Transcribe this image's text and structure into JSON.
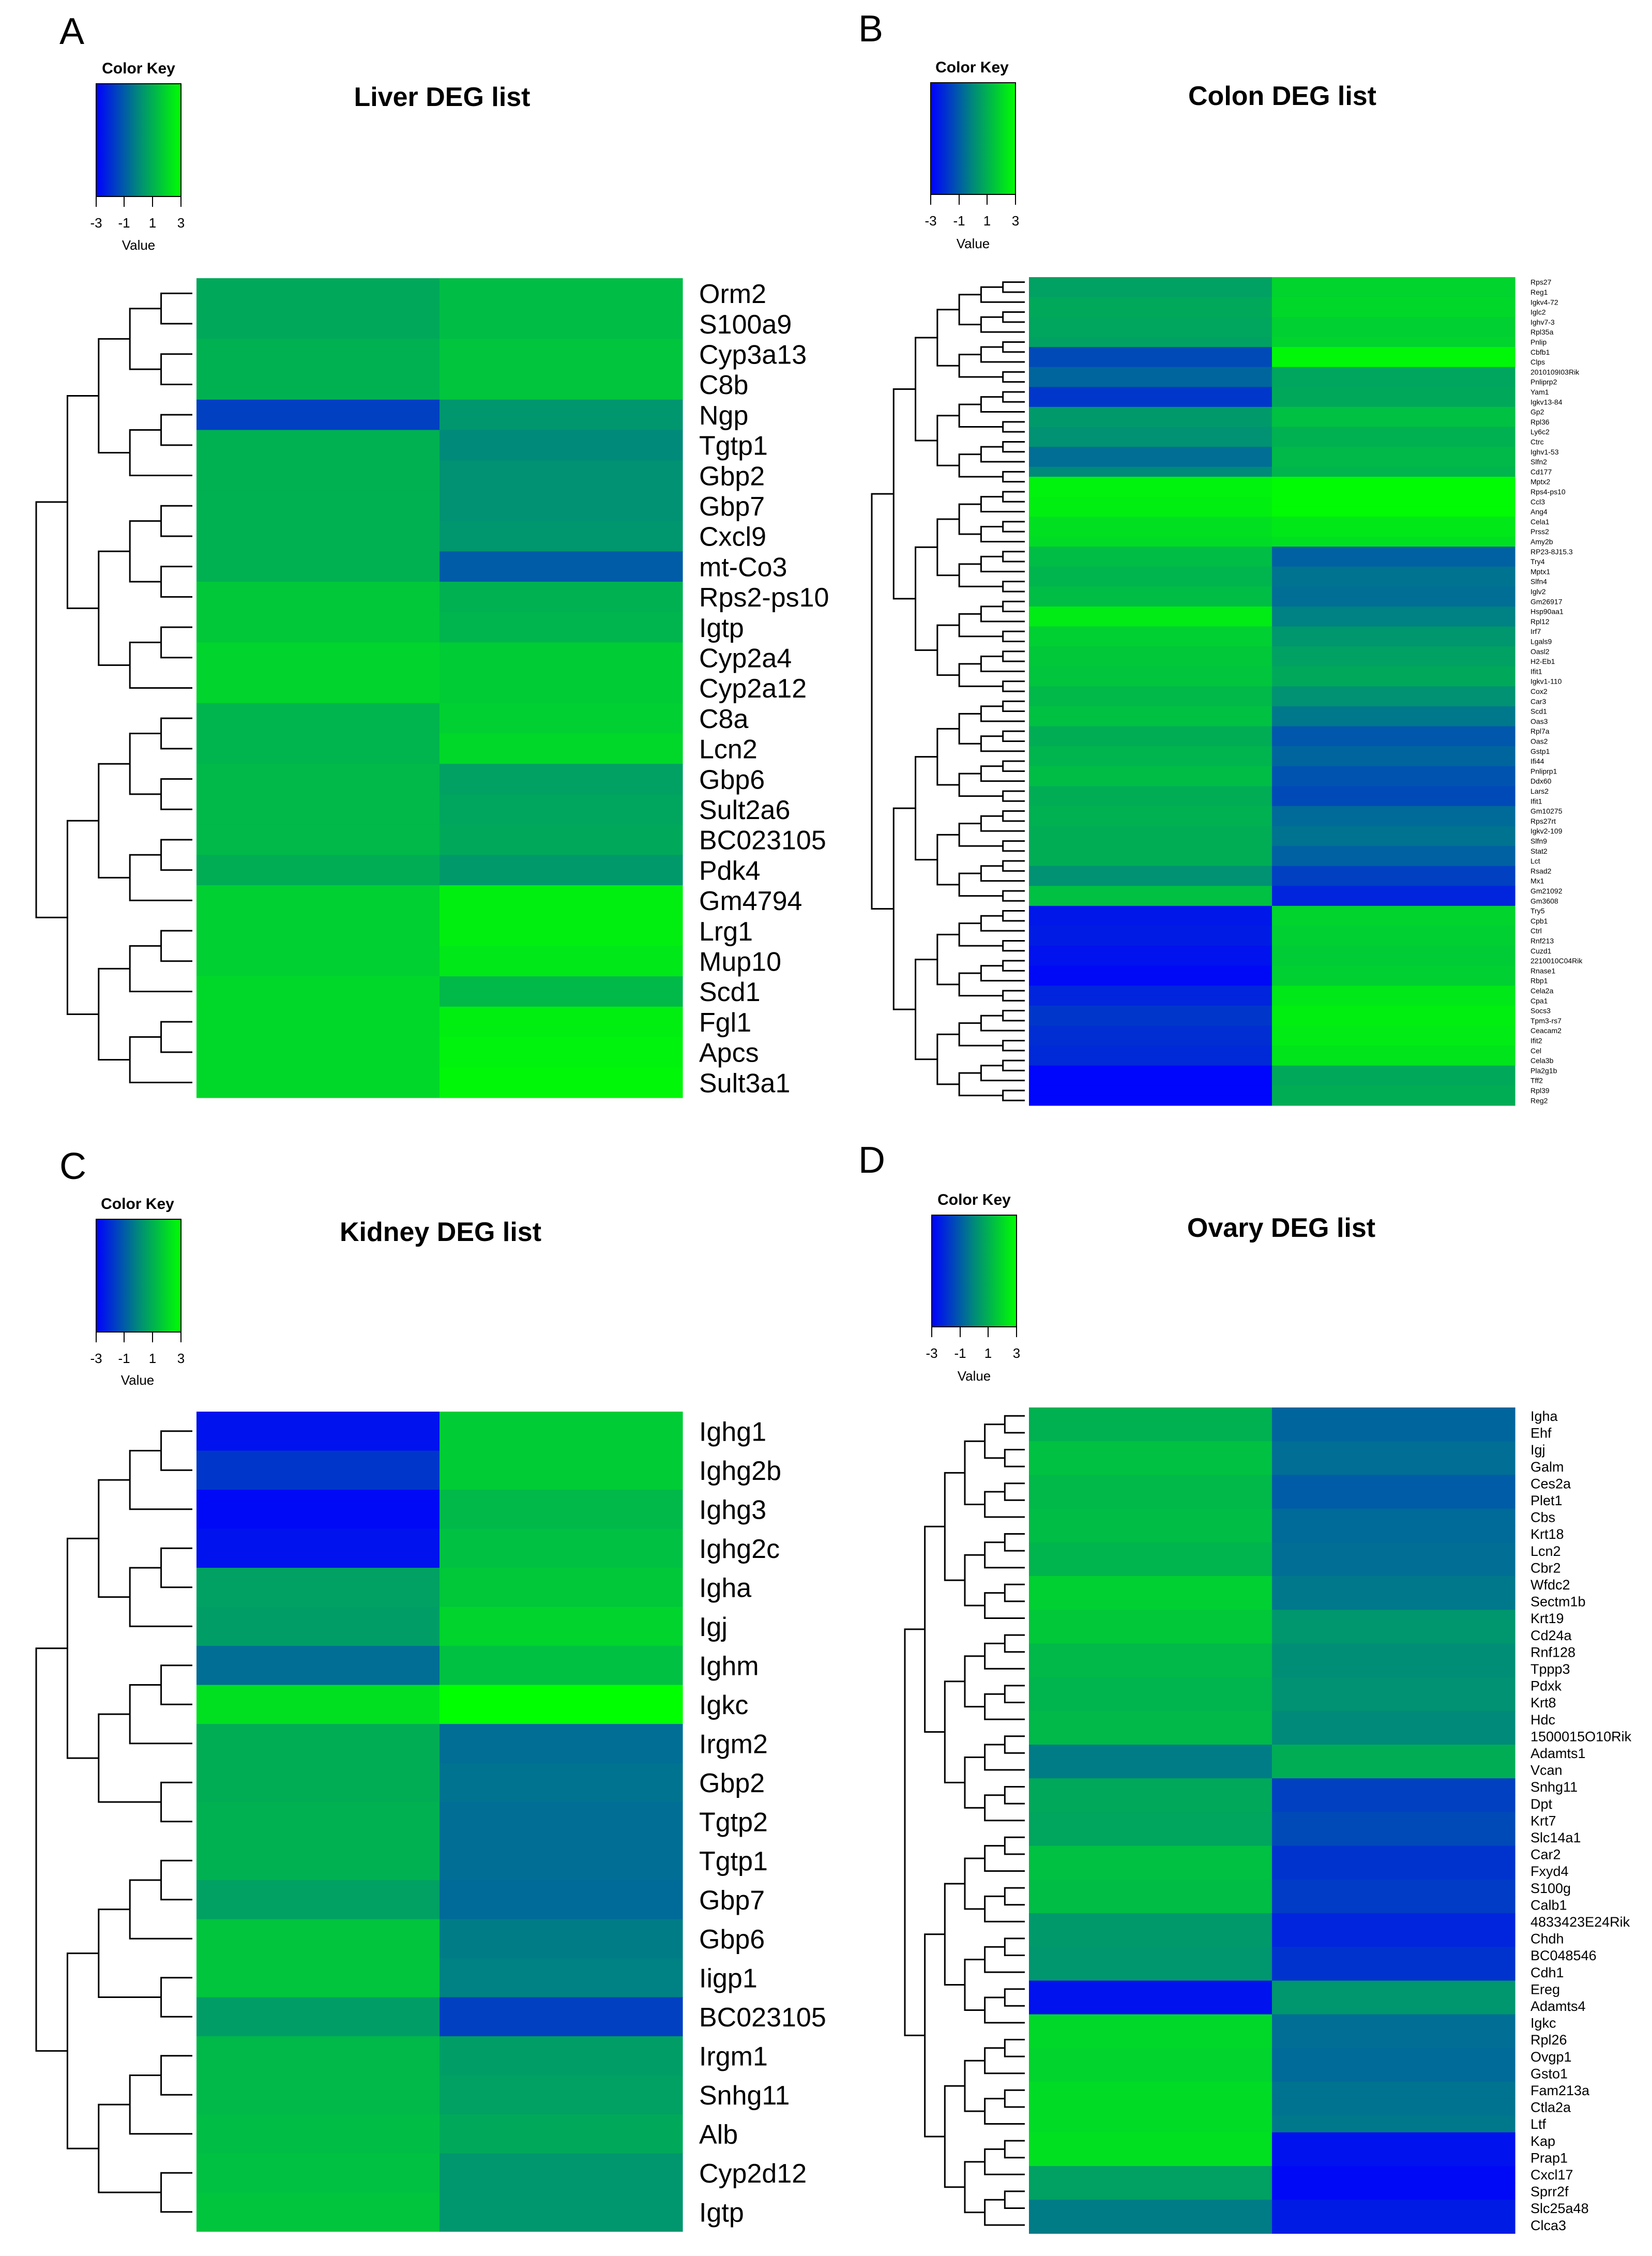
{
  "color_key": {
    "title": "Color Key",
    "ticks": [
      "-3",
      "-1",
      "1",
      "3"
    ],
    "xlabel": "Value",
    "colors": {
      "low": "#0000ff",
      "mid": "#008a7a",
      "high": "#00ff00"
    },
    "range": [
      -3,
      3
    ]
  },
  "chart_data": [
    {
      "type": "heatmap",
      "panel": "A",
      "title": "Liver DEG list",
      "rows": [
        "Orm2",
        "S100a9",
        "Cyp3a13",
        "C8b",
        "Ngp",
        "Tgtp1",
        "Gbp2",
        "Gbp7",
        "Cxcl9",
        "mt-Co3",
        "Rps2-ps10",
        "Igtp",
        "Cyp2a4",
        "Cyp2a12",
        "C8a",
        "Lcn2",
        "Gbp6",
        "Sult2a6",
        "BC023105",
        "Pdk4",
        "Gm4794",
        "Lrg1",
        "Mup10",
        "Scd1",
        "Fgl1",
        "Apcs",
        "Sult3a1"
      ],
      "values": [
        [
          0.8,
          1.3
        ],
        [
          0.8,
          1.3
        ],
        [
          1.0,
          1.5
        ],
        [
          1.0,
          1.5
        ],
        [
          -1.6,
          0.3
        ],
        [
          1.0,
          0.0
        ],
        [
          1.0,
          0.2
        ],
        [
          1.0,
          0.2
        ],
        [
          1.0,
          0.3
        ],
        [
          1.0,
          -1.0
        ],
        [
          1.6,
          1.0
        ],
        [
          1.6,
          1.1
        ],
        [
          1.9,
          1.7
        ],
        [
          1.9,
          1.7
        ],
        [
          1.1,
          1.8
        ],
        [
          1.1,
          2.0
        ],
        [
          1.2,
          0.6
        ],
        [
          1.2,
          0.7
        ],
        [
          1.2,
          0.8
        ],
        [
          0.9,
          0.4
        ],
        [
          1.8,
          2.6
        ],
        [
          1.8,
          2.6
        ],
        [
          1.8,
          2.4
        ],
        [
          2.0,
          1.2
        ],
        [
          2.0,
          2.6
        ],
        [
          2.0,
          2.7
        ],
        [
          2.0,
          2.8
        ]
      ]
    },
    {
      "type": "heatmap",
      "panel": "B",
      "title": "Colon DEG list",
      "rows": [
        "Rps27",
        "Reg1",
        "Igkv4-72",
        "Iglc2",
        "Ighv7-3",
        "Rpl35a",
        "Pnlip",
        "Cbfb1",
        "Clps",
        "2010109I03Rik",
        "Pnliprp2",
        "Yam1",
        "Igkv13-84",
        "Gp2",
        "Rpl36",
        "Ly6c2",
        "Ctrc",
        "Ighv1-53",
        "Slfn2",
        "Cd177",
        "Mptx2",
        "Rps4-ps10",
        "Ccl3",
        "Ang4",
        "Cela1",
        "Prss2",
        "Amy2b",
        "RP23-8J15.3",
        "Try4",
        "Mptx1",
        "Slfn4",
        "Iglv2",
        "Gm26917",
        "Hsp90aa1",
        "Rpl12",
        "Irf7",
        "Lgals9",
        "Oasl2",
        "H2-Eb1",
        "Ifit1",
        "Igkv1-110",
        "Cox2",
        "Car3",
        "Scd1",
        "Oas3",
        "Rpl7a",
        "Oas2",
        "Gstp1",
        "Ifi44",
        "Pnliprp1",
        "Ddx60",
        "Lars2",
        "Ifit1",
        "Gm10275",
        "Rps27rt",
        "Igkv2-109",
        "Slfn9",
        "Stat2",
        "Lct",
        "Rsad2",
        "Mx1",
        "Gm21092",
        "Gm3608",
        "Try5",
        "Cpb1",
        "Ctrl",
        "Rnf213",
        "Cuzd1",
        "2210010C04Rik",
        "Rnase1",
        "Rbp1",
        "Cela2a",
        "Cpa1",
        "Socs3",
        "Tpm3-rs7",
        "Ceacam2",
        "Ifit2",
        "Cel",
        "Cela3b",
        "Pla2g1b",
        "Tff2",
        "Rpl39",
        "Reg2"
      ],
      "values": [
        [
          0.6,
          1.9
        ],
        [
          0.6,
          1.9
        ],
        [
          0.8,
          2.0
        ],
        [
          0.8,
          2.0
        ],
        [
          0.7,
          1.8
        ],
        [
          0.7,
          1.8
        ],
        [
          0.6,
          1.9
        ],
        [
          -1.4,
          2.8
        ],
        [
          -1.4,
          2.8
        ],
        [
          -0.8,
          0.7
        ],
        [
          -0.8,
          0.7
        ],
        [
          -1.8,
          0.8
        ],
        [
          -1.8,
          0.8
        ],
        [
          0.4,
          1.4
        ],
        [
          0.4,
          1.4
        ],
        [
          0.2,
          1.0
        ],
        [
          0.2,
          1.0
        ],
        [
          -0.6,
          1.2
        ],
        [
          -0.6,
          1.2
        ],
        [
          0.0,
          1.1
        ],
        [
          2.7,
          2.9
        ],
        [
          2.7,
          2.9
        ],
        [
          2.6,
          2.9
        ],
        [
          2.6,
          2.9
        ],
        [
          2.2,
          2.4
        ],
        [
          2.2,
          2.4
        ],
        [
          2.1,
          2.2
        ],
        [
          1.3,
          -0.9
        ],
        [
          1.3,
          -0.9
        ],
        [
          1.1,
          -0.5
        ],
        [
          1.1,
          -0.5
        ],
        [
          1.3,
          -0.6
        ],
        [
          1.3,
          -0.6
        ],
        [
          2.5,
          -0.2
        ],
        [
          2.5,
          -0.2
        ],
        [
          1.8,
          0.3
        ],
        [
          1.8,
          0.3
        ],
        [
          1.6,
          0.6
        ],
        [
          1.6,
          0.6
        ],
        [
          1.5,
          0.8
        ],
        [
          1.5,
          0.8
        ],
        [
          1.2,
          0.2
        ],
        [
          1.2,
          0.2
        ],
        [
          1.4,
          -0.4
        ],
        [
          1.4,
          -0.4
        ],
        [
          0.9,
          -1.1
        ],
        [
          0.9,
          -1.1
        ],
        [
          1.1,
          -0.8
        ],
        [
          1.1,
          -0.8
        ],
        [
          1.3,
          -1.2
        ],
        [
          1.3,
          -1.2
        ],
        [
          0.9,
          -1.4
        ],
        [
          0.9,
          -1.4
        ],
        [
          1.0,
          -0.7
        ],
        [
          1.0,
          -0.7
        ],
        [
          0.9,
          -0.5
        ],
        [
          0.9,
          -0.5
        ],
        [
          0.9,
          -0.9
        ],
        [
          0.9,
          -0.9
        ],
        [
          0.2,
          -1.6
        ],
        [
          0.2,
          -1.6
        ],
        [
          1.4,
          -2.2
        ],
        [
          1.4,
          -2.2
        ],
        [
          -2.5,
          1.9
        ],
        [
          -2.5,
          1.9
        ],
        [
          -2.4,
          1.8
        ],
        [
          -2.4,
          1.8
        ],
        [
          -2.6,
          1.7
        ],
        [
          -2.6,
          1.7
        ],
        [
          -2.8,
          1.8
        ],
        [
          -2.8,
          1.8
        ],
        [
          -2.2,
          2.4
        ],
        [
          -2.2,
          2.4
        ],
        [
          -1.8,
          2.6
        ],
        [
          -1.8,
          2.6
        ],
        [
          -2.0,
          2.5
        ],
        [
          -2.0,
          2.5
        ],
        [
          -2.1,
          2.3
        ],
        [
          -2.1,
          2.3
        ],
        [
          -2.9,
          0.8
        ],
        [
          -2.9,
          0.8
        ],
        [
          -2.9,
          0.9
        ],
        [
          -2.9,
          0.9
        ]
      ]
    },
    {
      "type": "heatmap",
      "panel": "C",
      "title": "Kidney DEG list",
      "rows": [
        "Ighg1",
        "Ighg2b",
        "Ighg3",
        "Ighg2c",
        "Igha",
        "Igj",
        "Ighm",
        "Igkc",
        "Irgm2",
        "Gbp2",
        "Tgtp2",
        "Tgtp1",
        "Gbp7",
        "Gbp6",
        "Iigp1",
        "BC023105",
        "Irgm1",
        "Snhg11",
        "Alb",
        "Cyp2d12",
        "Igtp"
      ],
      "values": [
        [
          -2.6,
          1.7
        ],
        [
          -1.8,
          1.7
        ],
        [
          -2.8,
          1.2
        ],
        [
          -2.6,
          1.4
        ],
        [
          0.6,
          1.6
        ],
        [
          0.5,
          1.9
        ],
        [
          -0.6,
          1.4
        ],
        [
          2.2,
          3.0
        ],
        [
          0.9,
          -0.6
        ],
        [
          0.9,
          -0.5
        ],
        [
          1.0,
          -0.6
        ],
        [
          1.0,
          -0.6
        ],
        [
          0.6,
          -0.7
        ],
        [
          1.5,
          -0.3
        ],
        [
          1.5,
          -0.2
        ],
        [
          0.5,
          -1.6
        ],
        [
          1.2,
          0.5
        ],
        [
          1.2,
          0.6
        ],
        [
          1.3,
          0.8
        ],
        [
          1.4,
          0.3
        ],
        [
          1.5,
          0.3
        ]
      ]
    },
    {
      "type": "heatmap",
      "panel": "D",
      "title": "Ovary DEG list",
      "rows": [
        "Igha",
        "Ehf",
        "Igj",
        "Galm",
        "Ces2a",
        "Plet1",
        "Cbs",
        "Krt18",
        "Lcn2",
        "Cbr2",
        "Wfdc2",
        "Sectm1b",
        "Krt19",
        "Cd24a",
        "Rnf128",
        "Tppp3",
        "Pdxk",
        "Krt8",
        "Hdc",
        "1500015O10Rik",
        "Adamts1",
        "Vcan",
        "Snhg11",
        "Dpt",
        "Krt7",
        "Slc14a1",
        "Car2",
        "Fxyd4",
        "S100g",
        "Calb1",
        "4833423E24Rik",
        "Chdh",
        "BC048546",
        "Cdh1",
        "Ereg",
        "Adamts4",
        "Igkc",
        "Rpl26",
        "Ovgp1",
        "Gsto1",
        "Fam213a",
        "Ctla2a",
        "Ltf",
        "Kap",
        "Prap1",
        "Cxcl17",
        "Sprr2f",
        "Slc25a48",
        "Clca3"
      ],
      "values": [
        [
          1.0,
          -0.8
        ],
        [
          1.0,
          -0.8
        ],
        [
          1.4,
          -0.6
        ],
        [
          1.4,
          -0.6
        ],
        [
          1.2,
          -1.0
        ],
        [
          1.2,
          -1.0
        ],
        [
          1.3,
          -0.7
        ],
        [
          1.3,
          -0.7
        ],
        [
          1.1,
          -0.6
        ],
        [
          1.1,
          -0.6
        ],
        [
          1.8,
          -0.4
        ],
        [
          1.8,
          -0.4
        ],
        [
          1.6,
          0.3
        ],
        [
          1.6,
          0.3
        ],
        [
          1.2,
          0.1
        ],
        [
          1.2,
          0.1
        ],
        [
          1.1,
          0.2
        ],
        [
          1.1,
          0.2
        ],
        [
          1.2,
          0.0
        ],
        [
          1.2,
          0.0
        ],
        [
          -0.3,
          0.9
        ],
        [
          -0.3,
          0.9
        ],
        [
          0.8,
          -1.6
        ],
        [
          0.8,
          -1.6
        ],
        [
          0.7,
          -1.4
        ],
        [
          0.7,
          -1.4
        ],
        [
          1.4,
          -1.9
        ],
        [
          1.4,
          -1.9
        ],
        [
          1.3,
          -1.7
        ],
        [
          1.3,
          -1.7
        ],
        [
          0.4,
          -2.2
        ],
        [
          0.4,
          -2.2
        ],
        [
          0.3,
          -1.9
        ],
        [
          0.3,
          -1.9
        ],
        [
          -2.6,
          0.3
        ],
        [
          -2.6,
          0.3
        ],
        [
          2.0,
          -0.6
        ],
        [
          2.0,
          -0.6
        ],
        [
          1.9,
          -0.7
        ],
        [
          1.9,
          -0.7
        ],
        [
          2.1,
          -0.5
        ],
        [
          2.1,
          -0.5
        ],
        [
          2.1,
          -0.4
        ],
        [
          2.2,
          -2.6
        ],
        [
          2.2,
          -2.6
        ],
        [
          0.6,
          -2.8
        ],
        [
          0.6,
          -2.8
        ],
        [
          -0.3,
          -2.4
        ],
        [
          -0.3,
          -2.4
        ]
      ]
    }
  ]
}
